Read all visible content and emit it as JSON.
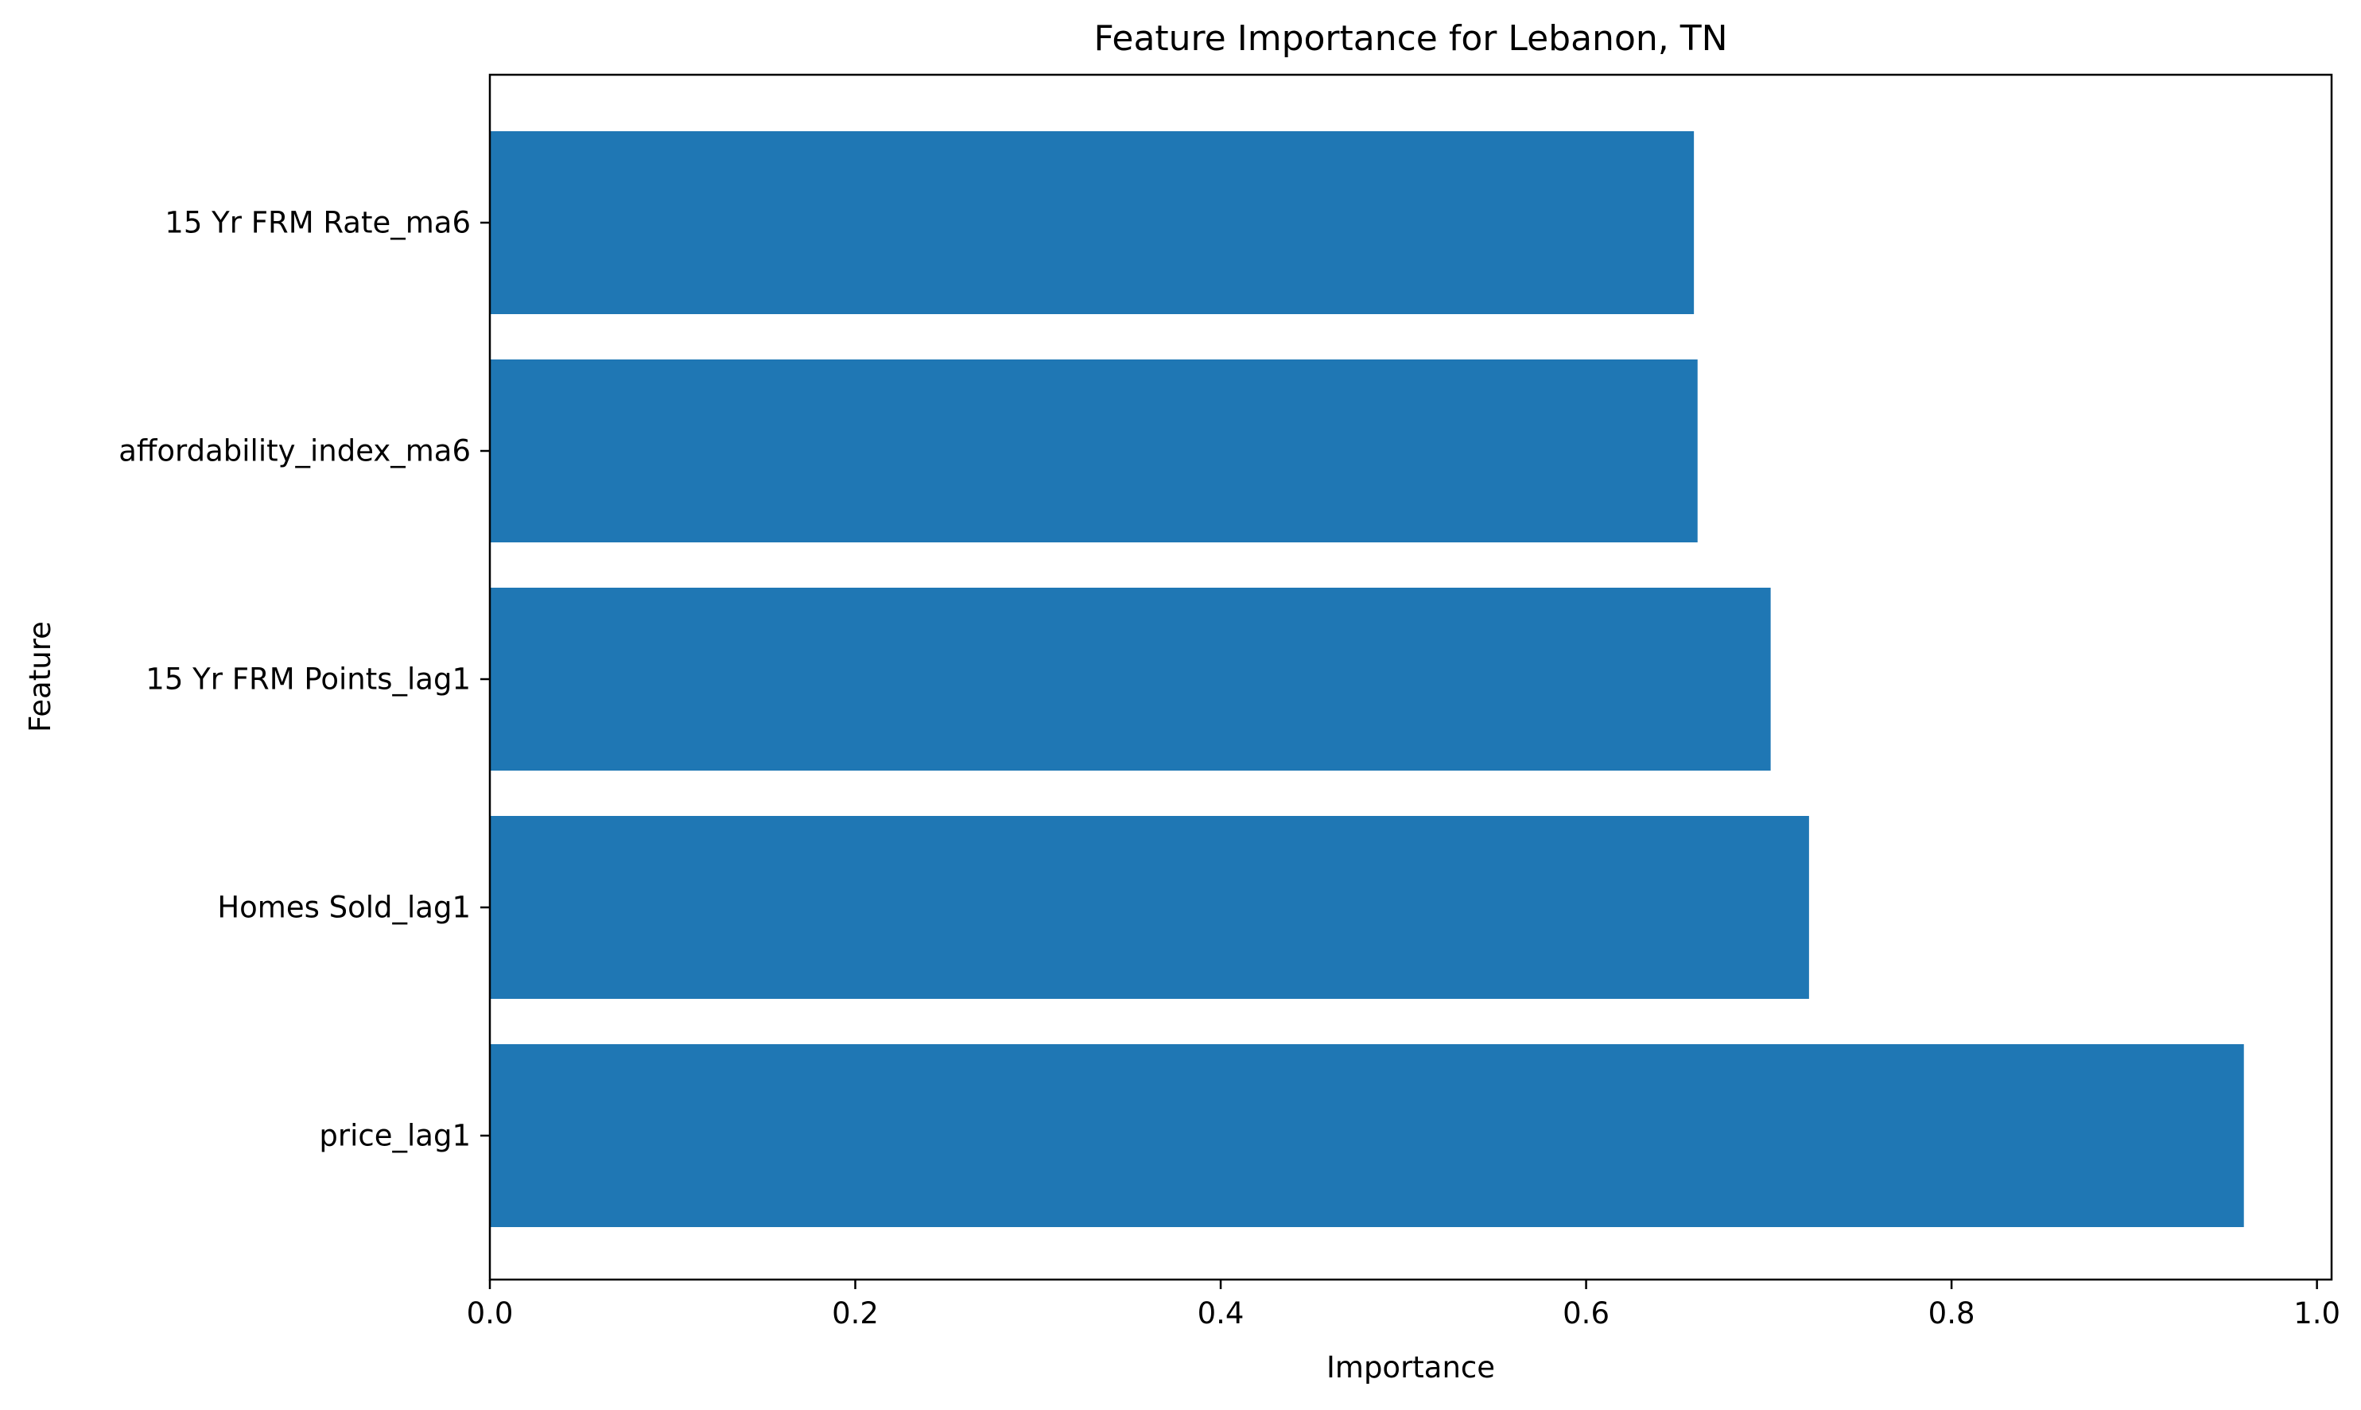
{
  "chart_data": {
    "type": "bar",
    "orientation": "horizontal",
    "title": "Feature Importance for Lebanon, TN",
    "xlabel": "Importance",
    "ylabel": "Feature",
    "categories": [
      "price_lag1",
      "Homes Sold_lag1",
      "15 Yr FRM Points_lag1",
      "affordability_index_ma6",
      "15 Yr FRM Rate_ma6"
    ],
    "values": [
      0.96,
      0.722,
      0.701,
      0.661,
      0.659
    ],
    "xlim": [
      0.0,
      1.008
    ],
    "xticks": [
      "0.0",
      "0.2",
      "0.4",
      "0.6",
      "0.8",
      "1.0"
    ],
    "grid": false,
    "legend": "none",
    "bar_color": "#1f77b4"
  }
}
